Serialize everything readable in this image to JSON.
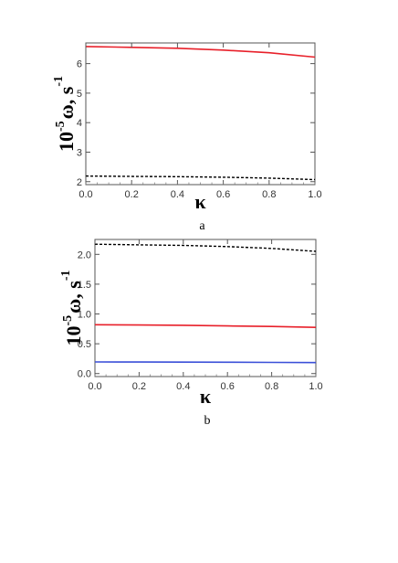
{
  "chart_data": [
    {
      "type": "line",
      "panel_label": "a",
      "xlabel": "κ",
      "ylabel": {
        "prefix": "10",
        "prefix_sup": "-5",
        "main": "ω, s",
        "main_sup": "-1"
      },
      "xlim": [
        0,
        1
      ],
      "ylim": [
        1.9,
        6.7
      ],
      "xticks": [
        "0.0",
        "0.2",
        "0.4",
        "0.6",
        "0.8",
        "1.0"
      ],
      "yticks": [
        "2",
        "3",
        "4",
        "5",
        "6"
      ],
      "series": [
        {
          "color": "#e8202a",
          "dash": "solid",
          "x": [
            0,
            0.2,
            0.4,
            0.6,
            0.8,
            1.0
          ],
          "y": [
            6.58,
            6.55,
            6.52,
            6.46,
            6.37,
            6.22
          ]
        },
        {
          "color": "#000000",
          "dash": "dashed",
          "x": [
            0,
            0.2,
            0.4,
            0.6,
            0.8,
            1.0
          ],
          "y": [
            2.19,
            2.18,
            2.17,
            2.15,
            2.12,
            2.07
          ]
        }
      ]
    },
    {
      "type": "line",
      "panel_label": "b",
      "xlabel": "κ",
      "ylabel": {
        "prefix": "10",
        "prefix_sup": "-5",
        "main": "ω, s",
        "main_sup": "-1"
      },
      "xlim": [
        0,
        1
      ],
      "ylim": [
        -0.05,
        2.25
      ],
      "xticks": [
        "0.0",
        "0.2",
        "0.4",
        "0.6",
        "0.8",
        "1.0"
      ],
      "yticks": [
        "0.0",
        "0.5",
        "1.0",
        "1.5",
        "2.0"
      ],
      "series": [
        {
          "color": "#000000",
          "dash": "dashed",
          "x": [
            0,
            0.2,
            0.4,
            0.6,
            0.8,
            1.0
          ],
          "y": [
            2.17,
            2.16,
            2.15,
            2.13,
            2.1,
            2.05
          ]
        },
        {
          "color": "#e8202a",
          "dash": "solid",
          "x": [
            0,
            0.2,
            0.4,
            0.6,
            0.8,
            1.0
          ],
          "y": [
            0.82,
            0.815,
            0.81,
            0.8,
            0.79,
            0.775
          ]
        },
        {
          "color": "#3a4fd8",
          "dash": "solid",
          "x": [
            0,
            0.2,
            0.4,
            0.6,
            0.8,
            1.0
          ],
          "y": [
            0.195,
            0.194,
            0.192,
            0.19,
            0.188,
            0.185
          ]
        }
      ]
    }
  ]
}
